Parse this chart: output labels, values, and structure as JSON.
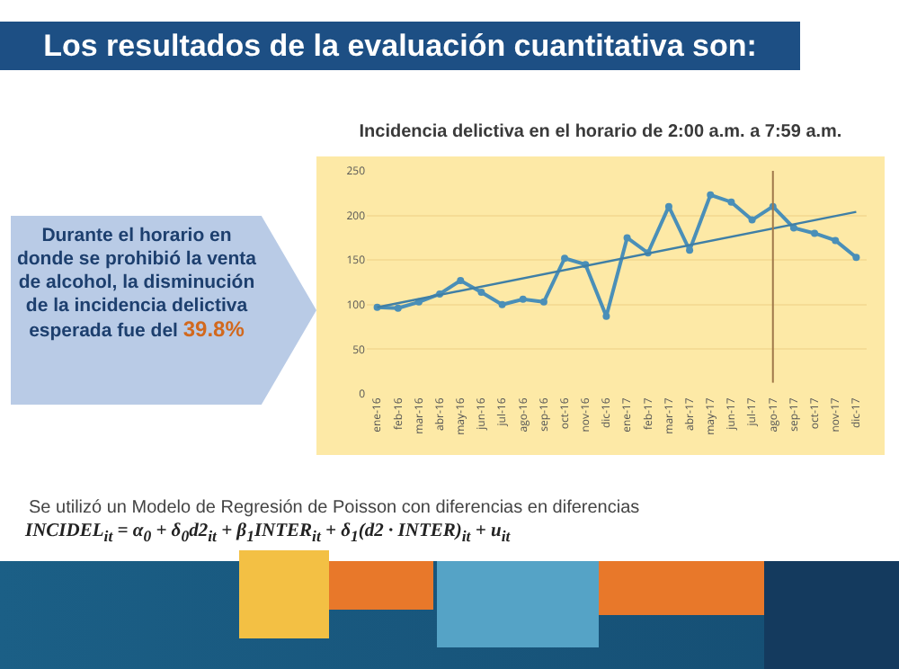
{
  "chart_data": {
    "type": "line",
    "title": "Incidencia delictiva en el horario de 2:00 a.m. a 7:59 a.m.",
    "categories": [
      "ene-16",
      "feb-16",
      "mar-16",
      "abr-16",
      "may-16",
      "jun-16",
      "jul-16",
      "ago-16",
      "sep-16",
      "oct-16",
      "nov-16",
      "dic-16",
      "ene-17",
      "feb-17",
      "mar-17",
      "abr-17",
      "may-17",
      "jun-17",
      "jul-17",
      "ago-17",
      "sep-17",
      "oct-17",
      "nov-17",
      "dic-17"
    ],
    "series": [
      {
        "color": "#4a8fb8",
        "marker": "circle",
        "values": [
          97,
          96,
          103,
          112,
          127,
          114,
          100,
          106,
          103,
          152,
          145,
          87,
          175,
          158,
          210,
          161,
          223,
          215,
          195,
          210,
          186,
          180,
          172,
          153
        ]
      },
      {
        "type": "line",
        "color": "#3f7fa6",
        "marker": "none",
        "x": [
          "ene-16",
          "dic-17"
        ],
        "values": [
          97,
          204
        ]
      }
    ],
    "ylim": [
      0,
      250
    ],
    "yticks": [
      0,
      50,
      100,
      150,
      200,
      250
    ],
    "grid": "y",
    "ref_lines": [
      {
        "axis": "x",
        "value": "ago-17",
        "color": "#a0784a"
      }
    ],
    "annotations": [
      "Los resultados de la evaluación cuantitativa son:",
      "Durante el horario en donde se prohibió la venta de alcohol, la disminución de la incidencia delictiva esperada fue del",
      "39.8%",
      "Se utilizó un Modelo de Regresión de Poisson con diferencias en diferencias",
      "INCIDEL$_{it}$ = α$_{0}$ + δ$_{0}$d2$_{it}$ + β$_{1}$INTER$_{it}$ + δ$_{1}$(d2 · INTER)$_{it}$ + u$_{it}$"
    ]
  }
}
